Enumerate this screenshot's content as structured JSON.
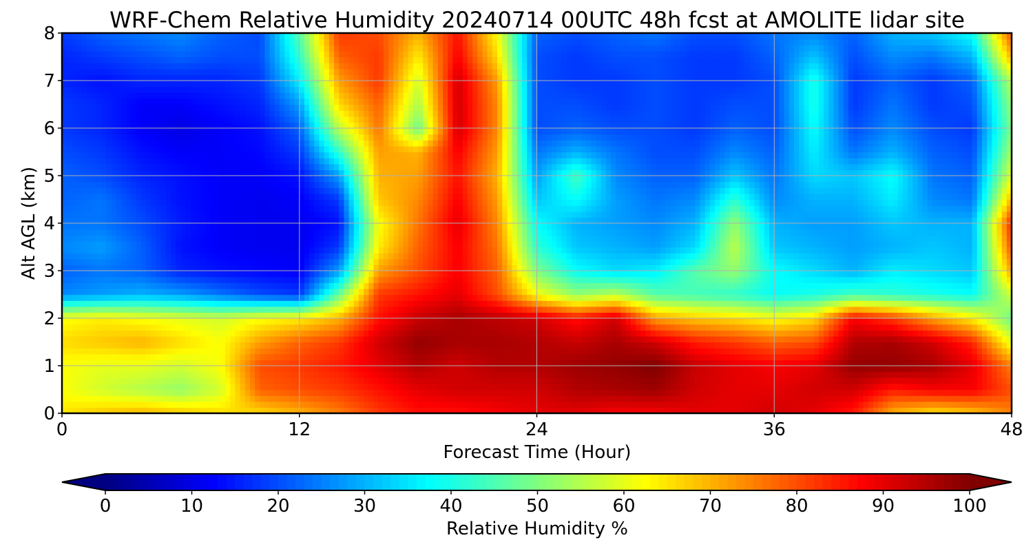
{
  "chart_data": {
    "type": "heatmap",
    "title": "WRF-Chem Relative Humidity 20240714 00UTC 48h fcst at AMOLITE lidar site",
    "xlabel": "Forecast Time (Hour)",
    "ylabel": "Alt AGL (km)",
    "xlim": [
      0,
      48
    ],
    "ylim": [
      0,
      8
    ],
    "x_ticks": [
      0,
      12,
      24,
      36,
      48
    ],
    "y_ticks": [
      0,
      1,
      2,
      3,
      4,
      5,
      6,
      7,
      8
    ],
    "grid": true,
    "colorbar": {
      "label": "Relative Humidity %",
      "range": [
        0,
        100
      ],
      "ticks": [
        0,
        10,
        20,
        30,
        40,
        50,
        60,
        70,
        80,
        90,
        100
      ],
      "extend": "both",
      "colormap": "jet"
    },
    "x": [
      0,
      2,
      4,
      6,
      8,
      10,
      12,
      14,
      16,
      18,
      20,
      22,
      24,
      26,
      28,
      30,
      32,
      34,
      36,
      38,
      40,
      42,
      44,
      46,
      48
    ],
    "y": [
      0,
      0.5,
      1,
      1.5,
      2,
      2.5,
      3,
      3.5,
      4,
      4.5,
      5,
      5.5,
      6,
      6.5,
      7,
      7.5,
      8
    ],
    "z": [
      [
        65,
        68,
        70,
        68,
        66,
        66,
        70,
        75,
        82,
        86,
        86,
        88,
        90,
        90,
        88,
        88,
        90,
        90,
        92,
        90,
        85,
        70,
        65,
        68,
        75
      ],
      [
        62,
        58,
        55,
        52,
        58,
        78,
        80,
        82,
        86,
        90,
        92,
        92,
        92,
        95,
        96,
        97,
        92,
        90,
        90,
        92,
        92,
        85,
        88,
        88,
        80
      ],
      [
        62,
        60,
        60,
        58,
        62,
        80,
        82,
        85,
        90,
        95,
        92,
        95,
        95,
        97,
        98,
        100,
        93,
        90,
        88,
        90,
        98,
        98,
        96,
        90,
        75
      ],
      [
        66,
        68,
        70,
        66,
        62,
        72,
        78,
        82,
        92,
        98,
        96,
        96,
        95,
        93,
        96,
        92,
        85,
        82,
        78,
        80,
        95,
        96,
        92,
        84,
        60
      ],
      [
        62,
        64,
        62,
        60,
        58,
        62,
        64,
        70,
        86,
        93,
        96,
        94,
        92,
        86,
        92,
        72,
        68,
        66,
        62,
        66,
        88,
        82,
        72,
        64,
        48
      ],
      [
        26,
        28,
        30,
        28,
        24,
        20,
        18,
        48,
        82,
        86,
        90,
        80,
        62,
        52,
        56,
        46,
        44,
        42,
        38,
        40,
        44,
        42,
        40,
        38,
        58
      ],
      [
        22,
        24,
        22,
        16,
        14,
        13,
        12,
        28,
        72,
        80,
        88,
        78,
        50,
        38,
        34,
        36,
        46,
        52,
        38,
        34,
        30,
        36,
        34,
        32,
        72
      ],
      [
        26,
        28,
        22,
        14,
        12,
        11,
        11,
        18,
        64,
        78,
        88,
        76,
        42,
        32,
        30,
        28,
        34,
        56,
        32,
        30,
        28,
        30,
        32,
        30,
        80
      ],
      [
        24,
        24,
        20,
        15,
        12,
        11,
        11,
        14,
        62,
        76,
        90,
        74,
        38,
        30,
        28,
        26,
        30,
        52,
        30,
        28,
        28,
        32,
        30,
        30,
        84
      ],
      [
        22,
        24,
        18,
        14,
        12,
        11,
        12,
        18,
        68,
        74,
        88,
        72,
        32,
        38,
        28,
        24,
        26,
        42,
        26,
        30,
        30,
        36,
        26,
        24,
        70
      ],
      [
        22,
        20,
        16,
        14,
        12,
        12,
        14,
        28,
        70,
        72,
        86,
        70,
        28,
        44,
        26,
        22,
        22,
        32,
        24,
        34,
        32,
        38,
        24,
        22,
        60
      ],
      [
        20,
        18,
        14,
        12,
        12,
        13,
        18,
        42,
        72,
        70,
        88,
        72,
        24,
        30,
        24,
        20,
        20,
        26,
        22,
        36,
        24,
        30,
        22,
        20,
        54
      ],
      [
        18,
        16,
        12,
        10,
        12,
        14,
        22,
        56,
        76,
        48,
        92,
        74,
        20,
        22,
        20,
        20,
        18,
        22,
        20,
        38,
        20,
        26,
        20,
        18,
        50
      ],
      [
        18,
        16,
        12,
        12,
        14,
        16,
        28,
        66,
        78,
        54,
        92,
        74,
        20,
        20,
        18,
        20,
        18,
        20,
        20,
        40,
        18,
        24,
        18,
        20,
        52
      ],
      [
        16,
        14,
        16,
        16,
        16,
        18,
        36,
        72,
        82,
        58,
        92,
        72,
        20,
        18,
        18,
        20,
        18,
        18,
        20,
        40,
        18,
        22,
        18,
        22,
        56
      ],
      [
        16,
        18,
        20,
        22,
        20,
        20,
        42,
        78,
        82,
        64,
        88,
        66,
        20,
        18,
        20,
        20,
        18,
        18,
        22,
        32,
        20,
        26,
        24,
        30,
        70
      ],
      [
        18,
        22,
        24,
        26,
        22,
        20,
        46,
        82,
        80,
        70,
        86,
        62,
        22,
        20,
        22,
        24,
        20,
        20,
        24,
        26,
        22,
        30,
        32,
        38,
        80
      ]
    ]
  }
}
